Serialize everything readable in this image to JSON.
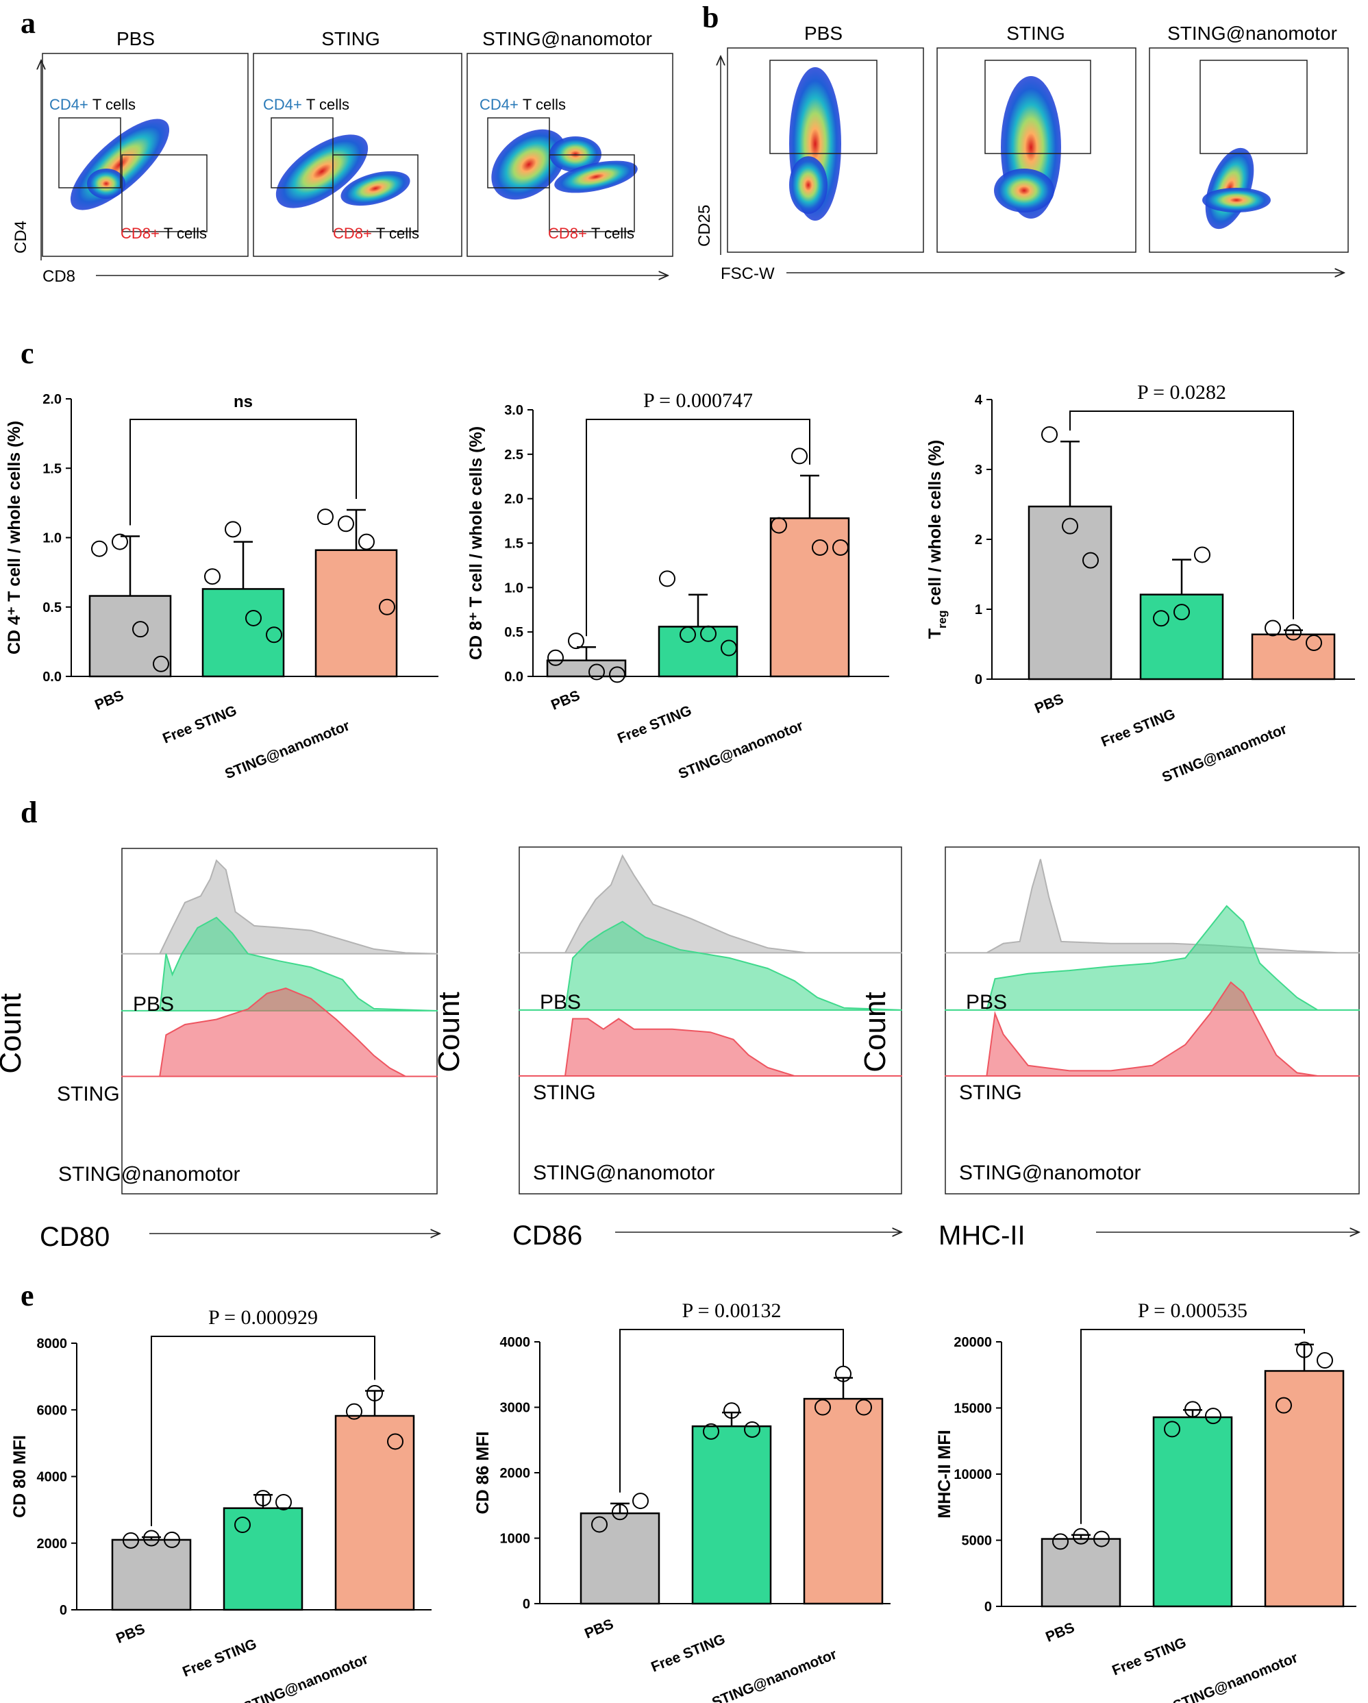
{
  "panel_letters": {
    "a": "a",
    "b": "b",
    "c": "c",
    "d": "d",
    "e": "e"
  },
  "flow_a": {
    "titles": [
      "PBS",
      "STING",
      "STING@nanomotor"
    ],
    "cd4_gate_label": "CD4+",
    "cd8_gate_label": "CD8+",
    "gate_suffix": "T cells",
    "ylabel": "CD4",
    "xlabel": "CD8"
  },
  "flow_b": {
    "titles": [
      "PBS",
      "STING",
      "STING@nanomotor"
    ],
    "ylabel": "CD25",
    "xlabel": "FSC-W"
  },
  "histograms": {
    "ylabel": "Count",
    "row_labels": [
      "PBS",
      "STING",
      "STING@nanomotor"
    ],
    "markers": [
      "CD80",
      "CD86",
      "MHC-II"
    ]
  },
  "colors": {
    "pbs": "#bfbfbf",
    "free_sting": "#31d895",
    "nanomotor": "#f4a98c",
    "hist_pbs": "#b3b3b3",
    "hist_sting": "#3fd98c",
    "hist_nano": "#ee5560",
    "cd4_label": "#2a7ab8",
    "cd8_label": "#e3262a"
  },
  "chart_data": [
    {
      "id": "c1",
      "type": "bar",
      "categories": [
        "PBS",
        "Free STING",
        "STING@nanomotor"
      ],
      "values": [
        0.58,
        0.63,
        0.91
      ],
      "errors": [
        0.43,
        0.34,
        0.29
      ],
      "points": [
        [
          0.92,
          0.97,
          0.34,
          0.09
        ],
        [
          0.72,
          1.06,
          0.42,
          0.3
        ],
        [
          1.15,
          1.1,
          0.97,
          0.5
        ]
      ],
      "ylim": [
        0,
        2.0
      ],
      "yticks": [
        "0.0",
        "0.5",
        "1.0",
        "1.5",
        "2.0"
      ],
      "ylabel": "CD 4⁺ T cell / whole cells (%)",
      "sig_label": "ns",
      "sig_pair": [
        0,
        2
      ]
    },
    {
      "id": "c2",
      "type": "bar",
      "categories": [
        "PBS",
        "Free STING",
        "STING@nanomotor"
      ],
      "values": [
        0.18,
        0.56,
        1.78
      ],
      "errors": [
        0.15,
        0.36,
        0.48
      ],
      "points": [
        [
          0.21,
          0.4,
          0.05,
          0.02
        ],
        [
          1.1,
          0.47,
          0.48,
          0.32
        ],
        [
          1.7,
          2.48,
          1.45,
          1.45
        ]
      ],
      "ylim": [
        0,
        3.0
      ],
      "yticks": [
        "0.0",
        "0.5",
        "1.0",
        "1.5",
        "2.0",
        "2.5",
        "3.0"
      ],
      "ylabel": "CD 8⁺ T cell / whole cells (%)",
      "sig_label": "P = 0.000747",
      "sig_pair": [
        0,
        2
      ]
    },
    {
      "id": "c3",
      "type": "bar",
      "categories": [
        "PBS",
        "Free STING",
        "STING@nanomotor"
      ],
      "values": [
        2.47,
        1.21,
        0.64
      ],
      "errors": [
        0.93,
        0.5,
        0.06
      ],
      "points": [
        [
          3.5,
          2.19,
          1.7
        ],
        [
          0.87,
          0.96,
          1.78
        ],
        [
          0.73,
          0.67,
          0.52
        ]
      ],
      "ylim": [
        0,
        4
      ],
      "yticks": [
        "0",
        "1",
        "2",
        "3",
        "4"
      ],
      "ylabel": "T",
      "ylabel_sub": "reg",
      "ylabel_rest": " cell / whole cells (%)",
      "sig_label": "P = 0.0282",
      "sig_pair": [
        0,
        2
      ]
    },
    {
      "id": "e1",
      "type": "bar",
      "categories": [
        "PBS",
        "Free STING",
        "STING@nanomotor"
      ],
      "values": [
        2100,
        3050,
        5820
      ],
      "errors": [
        80,
        400,
        750
      ],
      "points": [
        [
          2080,
          2150,
          2100
        ],
        [
          2550,
          3350,
          3230
        ],
        [
          5950,
          6500,
          5050
        ]
      ],
      "ylim": [
        0,
        8000
      ],
      "yticks": [
        "0",
        "2000",
        "4000",
        "6000",
        "8000"
      ],
      "ylabel": "CD 80 MFI",
      "sig_label": "P = 0.000929",
      "sig_pair": [
        0,
        2
      ]
    },
    {
      "id": "e2",
      "type": "bar",
      "categories": [
        "PBS",
        "Free STING",
        "STING@nanomotor"
      ],
      "values": [
        1380,
        2710,
        3130
      ],
      "errors": [
        150,
        210,
        320
      ],
      "points": [
        [
          1210,
          1400,
          1570
        ],
        [
          2630,
          2950,
          2660
        ],
        [
          3000,
          3510,
          3000
        ]
      ],
      "ylim": [
        0,
        4000
      ],
      "yticks": [
        "0",
        "1000",
        "2000",
        "3000",
        "4000"
      ],
      "ylabel": "CD 86 MFI",
      "sig_label": "P = 0.00132",
      "sig_pair": [
        0,
        2
      ]
    },
    {
      "id": "e3",
      "type": "bar",
      "categories": [
        "PBS",
        "Free STING",
        "STING@nanomotor"
      ],
      "values": [
        5100,
        14300,
        17800
      ],
      "errors": [
        300,
        550,
        2000
      ],
      "points": [
        [
          4900,
          5300,
          5100
        ],
        [
          13400,
          14900,
          14400
        ],
        [
          15200,
          19400,
          18600
        ]
      ],
      "ylim": [
        0,
        20000
      ],
      "yticks": [
        "0",
        "5000",
        "10000",
        "15000",
        "20000"
      ],
      "ylabel": "MHC-II MFI",
      "sig_label": "P = 0.000535",
      "sig_pair": [
        0,
        2
      ]
    }
  ]
}
